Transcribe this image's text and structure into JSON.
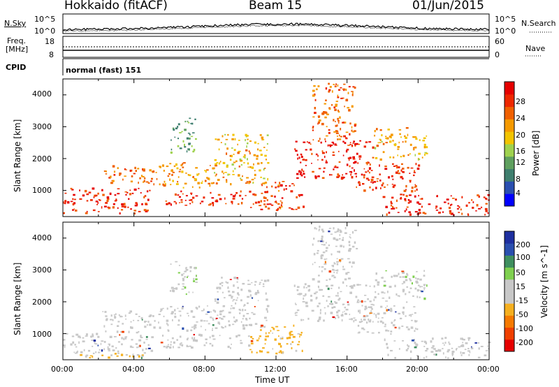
{
  "header": {
    "title": "Hokkaido (fitACF)",
    "beam": "Beam 15",
    "date": "01/Jun/2015"
  },
  "sky_panel": {
    "left_label": "N.Sky",
    "right_label": "N.Search",
    "left_ticks": [
      "10^5",
      "10^0"
    ],
    "right_ticks": [
      "10^5",
      "10^0"
    ]
  },
  "freq_panel": {
    "left_label_line1": "Freq.",
    "left_label_line2": "[MHz]",
    "right_label": "Nave",
    "left_ticks": [
      "18",
      "8"
    ],
    "right_ticks": [
      "60",
      "0"
    ]
  },
  "cpid": {
    "label": "CPID",
    "value": "normal (fast) 151"
  },
  "colors": {
    "power_scale": [
      "#0000ff",
      "#2a4fb0",
      "#3f7f6f",
      "#5fa05f",
      "#9fd24f",
      "#f2c400",
      "#f59a00",
      "#f06000",
      "#ee2800",
      "#e60000"
    ],
    "velocity_scale": [
      "#e60000",
      "#f04000",
      "#f57a00",
      "#f5b020",
      "#c8c8c8",
      "#c8c8c8",
      "#7fd04f",
      "#3f8f5f",
      "#2a4faf",
      "#1e2fa0"
    ]
  },
  "chart_data": [
    {
      "type": "heatmap",
      "panel": "power",
      "ylabel": "Slant Range [km]",
      "yticks": [
        "4000",
        "3000",
        "2000",
        "1000"
      ],
      "xticks": [
        "00:00",
        "04:00",
        "08:00",
        "12:00",
        "16:00",
        "20:00",
        "00:00"
      ],
      "xlim": [
        "00:00",
        "24:00"
      ],
      "ylim": [
        180,
        4500
      ],
      "colorbar": {
        "label": "Power [dB]",
        "ticks": [
          "28",
          "24",
          "20",
          "16",
          "12",
          "8",
          "4"
        ],
        "range": [
          0,
          30
        ]
      },
      "regions": [
        {
          "t0": 0.0,
          "t1": 5.0,
          "r0": 300,
          "r1": 1100,
          "value": 26
        },
        {
          "t0": 2.2,
          "t1": 5.5,
          "r0": 1200,
          "r1": 1800,
          "value": 22
        },
        {
          "t0": 5.5,
          "t1": 10.5,
          "r0": 550,
          "r1": 1000,
          "value": 26
        },
        {
          "t0": 5.5,
          "t1": 9.0,
          "r0": 1100,
          "r1": 1900,
          "value": 20
        },
        {
          "t0": 6.0,
          "t1": 7.5,
          "r0": 2200,
          "r1": 3300,
          "value": 10
        },
        {
          "t0": 8.5,
          "t1": 11.5,
          "r0": 1200,
          "r1": 2800,
          "value": 18
        },
        {
          "t0": 10.5,
          "t1": 13.5,
          "r0": 400,
          "r1": 1300,
          "value": 24
        },
        {
          "t0": 13.0,
          "t1": 17.5,
          "r0": 1400,
          "r1": 2600,
          "value": 27
        },
        {
          "t0": 14.0,
          "t1": 16.5,
          "r0": 2600,
          "r1": 4400,
          "value": 22
        },
        {
          "t0": 16.5,
          "t1": 20.0,
          "r0": 1000,
          "r1": 1900,
          "value": 25
        },
        {
          "t0": 18.0,
          "t1": 24.0,
          "r0": 250,
          "r1": 900,
          "value": 26
        },
        {
          "t0": 17.5,
          "t1": 20.5,
          "r0": 2000,
          "r1": 3000,
          "value": 18
        }
      ]
    },
    {
      "type": "heatmap",
      "panel": "velocity",
      "ylabel": "Slant Range [km]",
      "xlabel": "Time UT",
      "yticks": [
        "4000",
        "3000",
        "2000",
        "1000"
      ],
      "xticks": [
        "00:00",
        "04:00",
        "08:00",
        "12:00",
        "16:00",
        "20:00",
        "00:00"
      ],
      "xlim": [
        "00:00",
        "24:00"
      ],
      "ylim": [
        180,
        4500
      ],
      "colorbar": {
        "label": "Velocity [m s^-1]",
        "ticks": [
          "200",
          "100",
          "50",
          "15",
          "-15",
          "-50",
          "-100",
          "-200"
        ],
        "range": [
          -250,
          250
        ]
      },
      "regions": [
        {
          "t0": 0.0,
          "t1": 5.0,
          "r0": 300,
          "r1": 1100,
          "value": -5
        },
        {
          "t0": 2.2,
          "t1": 5.5,
          "r0": 1200,
          "r1": 1800,
          "value": 5
        },
        {
          "t0": 5.5,
          "t1": 10.5,
          "r0": 550,
          "r1": 1000,
          "value": 0
        },
        {
          "t0": 5.5,
          "t1": 9.0,
          "r0": 1100,
          "r1": 1900,
          "value": 3
        },
        {
          "t0": 6.0,
          "t1": 7.5,
          "r0": 2200,
          "r1": 3300,
          "value": 40
        },
        {
          "t0": 8.5,
          "t1": 11.5,
          "r0": 1200,
          "r1": 2800,
          "value": -8
        },
        {
          "t0": 10.5,
          "t1": 13.5,
          "r0": 400,
          "r1": 1300,
          "value": -60
        },
        {
          "t0": 13.0,
          "t1": 17.5,
          "r0": 1400,
          "r1": 2600,
          "value": 2
        },
        {
          "t0": 14.0,
          "t1": 16.5,
          "r0": 2600,
          "r1": 4400,
          "value": 20
        },
        {
          "t0": 16.5,
          "t1": 20.0,
          "r0": 1000,
          "r1": 1900,
          "value": -4
        },
        {
          "t0": 18.0,
          "t1": 24.0,
          "r0": 250,
          "r1": 900,
          "value": -10
        },
        {
          "t0": 17.5,
          "t1": 20.5,
          "r0": 2000,
          "r1": 3000,
          "value": 40
        },
        {
          "t0": 0.5,
          "t1": 4.5,
          "r0": 250,
          "r1": 400,
          "value": -70
        }
      ]
    }
  ]
}
